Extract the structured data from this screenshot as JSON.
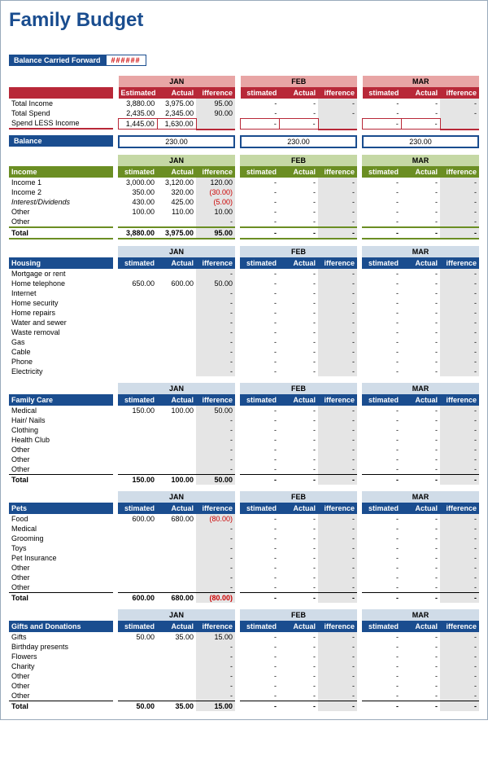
{
  "title": "Family Budget",
  "bcf_label": "Balance Carried Forward",
  "bcf_value": "######",
  "months": [
    "JAN",
    "FEB",
    "MAR"
  ],
  "col_headers": [
    "stimated",
    "Actual",
    "ifference"
  ],
  "col_headers_full": [
    "Estimated",
    "Actual",
    "ifference"
  ],
  "summary": {
    "rows": [
      {
        "label": "Total Income",
        "jan": [
          "3,880.00",
          "3,975.00",
          "95.00"
        ]
      },
      {
        "label": "Total Spend",
        "jan": [
          "2,435.00",
          "2,345.00",
          "90.00"
        ]
      }
    ],
    "spend_less": {
      "label": "Spend LESS Income",
      "jan": [
        "1,445.00",
        "1,630.00",
        ""
      ]
    }
  },
  "balance": {
    "label": "Balance",
    "values": [
      "230.00",
      "230.00",
      "230.00"
    ]
  },
  "income": {
    "title": "Income",
    "rows": [
      {
        "label": "Income 1",
        "jan": [
          "3,000.00",
          "3,120.00",
          "120.00"
        ]
      },
      {
        "label": "Income 2",
        "jan": [
          "350.00",
          "320.00",
          "(30.00)"
        ],
        "neg": true
      },
      {
        "label": "Interest/Dividends",
        "italic": true,
        "jan": [
          "430.00",
          "425.00",
          "(5.00)"
        ],
        "neg": true
      },
      {
        "label": "Other",
        "jan": [
          "100.00",
          "110.00",
          "10.00"
        ]
      },
      {
        "label": "Other",
        "jan": [
          "",
          "",
          "-"
        ]
      }
    ],
    "total": {
      "label": "Total",
      "jan": [
        "3,880.00",
        "3,975.00",
        "95.00"
      ]
    }
  },
  "housing": {
    "title": "Housing",
    "rows": [
      {
        "label": "Mortgage or rent",
        "jan": [
          "",
          "",
          "-"
        ]
      },
      {
        "label": "Home telephone",
        "jan": [
          "650.00",
          "600.00",
          "50.00"
        ]
      },
      {
        "label": "Internet",
        "jan": [
          "",
          "",
          "-"
        ]
      },
      {
        "label": "Home security",
        "jan": [
          "",
          "",
          "-"
        ]
      },
      {
        "label": "Home repairs",
        "jan": [
          "",
          "",
          "-"
        ]
      },
      {
        "label": "Water and sewer",
        "jan": [
          "",
          "",
          "-"
        ]
      },
      {
        "label": "Waste removal",
        "jan": [
          "",
          "",
          "-"
        ]
      },
      {
        "label": "Gas",
        "jan": [
          "",
          "",
          "-"
        ]
      },
      {
        "label": "Cable",
        "jan": [
          "",
          "",
          "-"
        ]
      },
      {
        "label": "Phone",
        "jan": [
          "",
          "",
          "-"
        ]
      },
      {
        "label": "Electricity",
        "jan": [
          "",
          "",
          "-"
        ]
      }
    ]
  },
  "family": {
    "title": "Family Care",
    "rows": [
      {
        "label": "Medical",
        "jan": [
          "150.00",
          "100.00",
          "50.00"
        ]
      },
      {
        "label": "Hair/ Nails",
        "jan": [
          "",
          "",
          "-"
        ]
      },
      {
        "label": "Clothing",
        "jan": [
          "",
          "",
          "-"
        ]
      },
      {
        "label": "Health Club",
        "jan": [
          "",
          "",
          "-"
        ]
      },
      {
        "label": "Other",
        "jan": [
          "",
          "",
          "-"
        ]
      },
      {
        "label": "Other",
        "jan": [
          "",
          "",
          "-"
        ]
      },
      {
        "label": "Other",
        "jan": [
          "",
          "",
          "-"
        ]
      }
    ],
    "total": {
      "label": "Total",
      "jan": [
        "150.00",
        "100.00",
        "50.00"
      ]
    }
  },
  "pets": {
    "title": "Pets",
    "rows": [
      {
        "label": "Food",
        "jan": [
          "600.00",
          "680.00",
          "(80.00)"
        ],
        "neg": true
      },
      {
        "label": "Medical",
        "jan": [
          "",
          "",
          "-"
        ]
      },
      {
        "label": "Grooming",
        "jan": [
          "",
          "",
          "-"
        ]
      },
      {
        "label": "Toys",
        "jan": [
          "",
          "",
          "-"
        ]
      },
      {
        "label": "Pet Insurance",
        "jan": [
          "",
          "",
          "-"
        ]
      },
      {
        "label": "Other",
        "jan": [
          "",
          "",
          "-"
        ]
      },
      {
        "label": "Other",
        "jan": [
          "",
          "",
          "-"
        ]
      },
      {
        "label": "Other",
        "jan": [
          "",
          "",
          "-"
        ]
      }
    ],
    "total": {
      "label": "Total",
      "jan": [
        "600.00",
        "680.00",
        "(80.00)"
      ],
      "neg": true
    }
  },
  "gifts": {
    "title": "Gifts and Donations",
    "rows": [
      {
        "label": "Gifts",
        "jan": [
          "50.00",
          "35.00",
          "15.00"
        ]
      },
      {
        "label": "Birthday presents",
        "jan": [
          "",
          "",
          "-"
        ]
      },
      {
        "label": "Flowers",
        "jan": [
          "",
          "",
          "-"
        ]
      },
      {
        "label": "Charity",
        "jan": [
          "",
          "",
          "-"
        ]
      },
      {
        "label": "Other",
        "jan": [
          "",
          "",
          "-"
        ]
      },
      {
        "label": "Other",
        "jan": [
          "",
          "",
          "-"
        ]
      },
      {
        "label": "Other",
        "jan": [
          "",
          "",
          "-"
        ]
      }
    ],
    "total": {
      "label": "Total",
      "jan": [
        "50.00",
        "35.00",
        "15.00"
      ]
    }
  },
  "colors": {
    "title": "#1a4d8f",
    "summary_head": "#e8a5a5",
    "summary_bar": "#b82838",
    "income_head": "#c5d8a5",
    "income_bar": "#6b8e23",
    "blue_head": "#d0dce8",
    "blue_bar": "#1a4d8f",
    "diff_bg": "#e5e5e5",
    "neg": "#c00"
  }
}
